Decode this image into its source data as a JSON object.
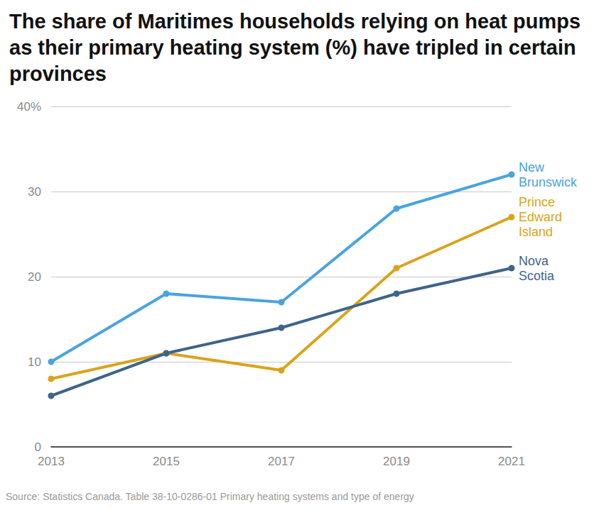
{
  "chart_data": {
    "type": "line",
    "title": "The share of Maritimes households relying on heat pumps as their primary heating system (%) have tripled in certain provinces",
    "source": "Source: Statistics Canada. Table 38-10-0286-01 Primary heating systems and type of energy",
    "categories": [
      "2013",
      "2015",
      "2017",
      "2019",
      "2021"
    ],
    "series": [
      {
        "name": "New Brunswick",
        "color": "#4aa3e0",
        "values": [
          10,
          18,
          17,
          28,
          32
        ]
      },
      {
        "name": "Prince Edward Island",
        "color": "#d9a41c",
        "values": [
          8,
          11,
          9,
          21,
          27
        ]
      },
      {
        "name": "Nova Scotia",
        "color": "#3e6489",
        "values": [
          6,
          11,
          14,
          18,
          21
        ]
      }
    ],
    "ylim": [
      0,
      40
    ],
    "yticks": [
      0,
      10,
      20,
      30,
      {
        "value": 40,
        "label": "40%"
      }
    ],
    "grid": true,
    "marker": "circle",
    "line_style": "solid"
  }
}
